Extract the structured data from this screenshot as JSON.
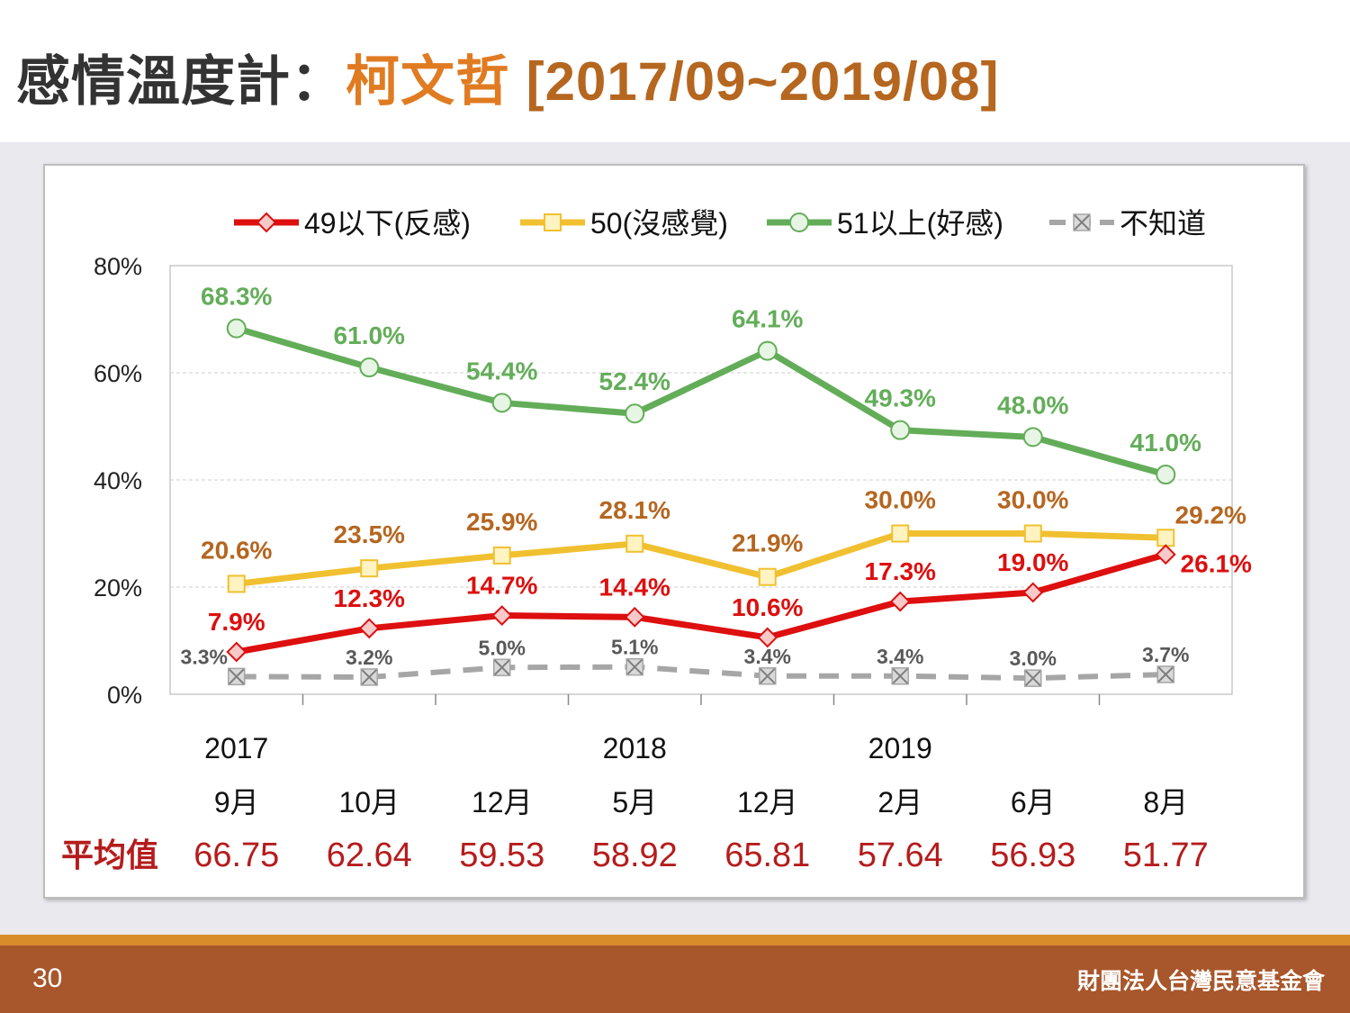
{
  "title": {
    "prefix": "感情溫度計：",
    "name": "柯文哲",
    "range": "[2017/09~2019/08]"
  },
  "footer": {
    "page_number": "30",
    "organization": "財團法人台灣民意基金會"
  },
  "colors": {
    "negative": "#dd0f0f",
    "neutral": "#f0c030",
    "positive": "#63ad59",
    "unknown": "#a6a6a6",
    "average_text": "#b51c1c"
  },
  "chart_data": {
    "type": "line",
    "categories": [
      "9月",
      "10月",
      "12月",
      "5月",
      "12月",
      "2月",
      "6月",
      "8月"
    ],
    "year_labels": [
      {
        "index": 0,
        "label": "2017"
      },
      {
        "index": 3,
        "label": "2018"
      },
      {
        "index": 5,
        "label": "2019"
      }
    ],
    "y_ticks": [
      "0%",
      "20%",
      "40%",
      "60%",
      "80%"
    ],
    "ylim": [
      0,
      80
    ],
    "grid": true,
    "legend_position": "top",
    "series": [
      {
        "name": "49以下(反感)",
        "values": [
          7.9,
          12.3,
          14.7,
          14.4,
          10.6,
          17.3,
          19.0,
          26.1
        ],
        "labels": [
          "7.9%",
          "12.3%",
          "14.7%",
          "14.4%",
          "10.6%",
          "17.3%",
          "19.0%",
          "26.1%"
        ]
      },
      {
        "name": "50(沒感覺)",
        "values": [
          20.6,
          23.5,
          25.9,
          28.1,
          21.9,
          30.0,
          30.0,
          29.2
        ],
        "labels": [
          "20.6%",
          "23.5%",
          "25.9%",
          "28.1%",
          "21.9%",
          "30.0%",
          "30.0%",
          "29.2%"
        ]
      },
      {
        "name": "51以上(好感)",
        "values": [
          68.3,
          61.0,
          54.4,
          52.4,
          64.1,
          49.3,
          48.0,
          41.0
        ],
        "labels": [
          "68.3%",
          "61.0%",
          "54.4%",
          "52.4%",
          "64.1%",
          "49.3%",
          "48.0%",
          "41.0%"
        ]
      },
      {
        "name": "不知道",
        "values": [
          3.3,
          3.2,
          5.0,
          5.1,
          3.4,
          3.4,
          3.0,
          3.7
        ],
        "labels": [
          "3.3%",
          "3.2%",
          "5.0%",
          "5.1%",
          "3.4%",
          "3.4%",
          "3.0%",
          "3.7%"
        ]
      }
    ],
    "average": {
      "label": "平均值",
      "values": [
        "66.75",
        "62.64",
        "59.53",
        "58.92",
        "65.81",
        "57.64",
        "56.93",
        "51.77"
      ]
    }
  }
}
